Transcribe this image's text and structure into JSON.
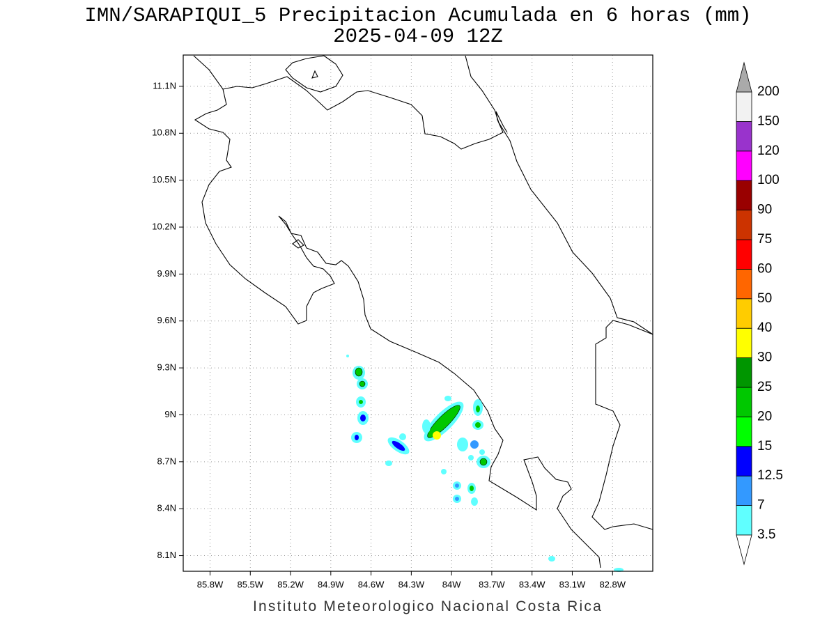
{
  "title": "IMN/SARAPIQUI_5 Precipitacion Acumulada en 6 horas (mm)",
  "subtitle": "2025-04-09 12Z",
  "footer": "Instituto Meteorologico Nacional Costa Rica",
  "map": {
    "xlim": [
      -86.0,
      -82.5
    ],
    "ylim": [
      8.0,
      11.3
    ],
    "grid": true,
    "xticks": [
      {
        "value": -85.8,
        "label": "85.8W"
      },
      {
        "value": -85.5,
        "label": "85.5W"
      },
      {
        "value": -85.2,
        "label": "85.2W"
      },
      {
        "value": -84.9,
        "label": "84.9W"
      },
      {
        "value": -84.6,
        "label": "84.6W"
      },
      {
        "value": -84.3,
        "label": "84.3W"
      },
      {
        "value": -84.0,
        "label": "84W"
      },
      {
        "value": -83.7,
        "label": "83.7W"
      },
      {
        "value": -83.4,
        "label": "83.4W"
      },
      {
        "value": -83.1,
        "label": "83.1W"
      },
      {
        "value": -82.8,
        "label": "82.8W"
      }
    ],
    "yticks": [
      {
        "value": 8.1,
        "label": "8.1N"
      },
      {
        "value": 8.4,
        "label": "8.4N"
      },
      {
        "value": 8.7,
        "label": "8.7N"
      },
      {
        "value": 9.0,
        "label": "9N"
      },
      {
        "value": 9.3,
        "label": "9.3N"
      },
      {
        "value": 9.6,
        "label": "9.6N"
      },
      {
        "value": 9.9,
        "label": "9.9N"
      },
      {
        "value": 10.2,
        "label": "10.2N"
      },
      {
        "value": 10.5,
        "label": "10.5N"
      },
      {
        "value": 10.8,
        "label": "10.8N"
      },
      {
        "value": 11.1,
        "label": "11.1N"
      }
    ]
  },
  "colorbar": {
    "levels": [
      3.5,
      7,
      12.5,
      15,
      20,
      25,
      30,
      40,
      50,
      60,
      75,
      90,
      100,
      120,
      150,
      200
    ],
    "colors": [
      "#60ffff",
      "#3399ff",
      "#0000ff",
      "#00ff00",
      "#00c800",
      "#009600",
      "#ffff00",
      "#ffcc00",
      "#ff6600",
      "#ff0000",
      "#cc3300",
      "#990000",
      "#ff00ff",
      "#9933cc",
      "#f2f2f2"
    ],
    "under_color": "#ffffff",
    "over_color": "#aaaaaa"
  }
}
